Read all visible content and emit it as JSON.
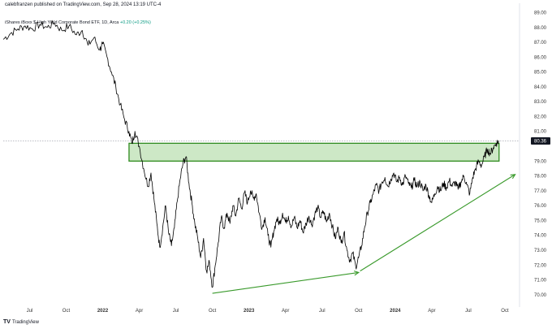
{
  "header": {
    "published": "calebfranzen published on TradingView.com, Sep 28, 2024 13:19 UTC-4",
    "symbol": "iShares iBoxx $ High Yield Corporate Bond ETF, 1D, Arca",
    "change": "+0.20 (+0.25%)"
  },
  "footer": {
    "logo_mark": "TV",
    "logo_text": "TradingView"
  },
  "colors": {
    "line": "#000000",
    "zone_fill": "#cde8c6",
    "zone_border": "#2e8b1f",
    "arrow": "#3a9a2c",
    "price_label_bg": "#131722",
    "axis_text": "#333333"
  },
  "chart_data": {
    "type": "line",
    "title": "iShares iBoxx $ High Yield Corporate Bond ETF, 1D, Arca",
    "xlabel": "",
    "ylabel": "",
    "ylim": [
      69.5,
      89.3
    ],
    "y_ticks": [
      "89.00",
      "88.00",
      "87.00",
      "86.00",
      "85.00",
      "84.00",
      "83.00",
      "82.00",
      "81.00",
      "79.00",
      "78.00",
      "77.00",
      "76.00",
      "75.00",
      "74.00",
      "73.00",
      "72.00",
      "71.00",
      "70.00"
    ],
    "x_ticks": [
      {
        "label": "Jul",
        "t": 2021.5
      },
      {
        "label": "Oct",
        "t": 2021.75
      },
      {
        "label": "2022",
        "t": 2022.0
      },
      {
        "label": "Apr",
        "t": 2022.25
      },
      {
        "label": "Jul",
        "t": 2022.5
      },
      {
        "label": "Oct",
        "t": 2022.75
      },
      {
        "label": "2023",
        "t": 2023.0
      },
      {
        "label": "Apr",
        "t": 2023.25
      },
      {
        "label": "Jul",
        "t": 2023.5
      },
      {
        "label": "Oct",
        "t": 2023.75
      },
      {
        "label": "2024",
        "t": 2024.0
      },
      {
        "label": "Apr",
        "t": 2024.25
      },
      {
        "label": "Jul",
        "t": 2024.5
      },
      {
        "label": "Oct",
        "t": 2024.75
      }
    ],
    "xlim": [
      2021.32,
      2024.85
    ],
    "last_price": "80.36",
    "last_value": 80.36,
    "series": [
      {
        "values": [
          [
            2021.32,
            87.2
          ],
          [
            2021.37,
            87.6
          ],
          [
            2021.42,
            87.9
          ],
          [
            2021.47,
            88.1
          ],
          [
            2021.52,
            87.9
          ],
          [
            2021.57,
            88.2
          ],
          [
            2021.62,
            88.0
          ],
          [
            2021.67,
            88.3
          ],
          [
            2021.72,
            87.8
          ],
          [
            2021.77,
            88.1
          ],
          [
            2021.82,
            87.5
          ],
          [
            2021.86,
            87.8
          ],
          [
            2021.9,
            86.8
          ],
          [
            2021.94,
            87.3
          ],
          [
            2021.98,
            86.5
          ],
          [
            2022.0,
            86.9
          ],
          [
            2022.03,
            86.0
          ],
          [
            2022.06,
            85.0
          ],
          [
            2022.09,
            84.0
          ],
          [
            2022.12,
            82.8
          ],
          [
            2022.15,
            81.8
          ],
          [
            2022.18,
            81.0
          ],
          [
            2022.2,
            80.2
          ],
          [
            2022.22,
            81.0
          ],
          [
            2022.25,
            80.0
          ],
          [
            2022.28,
            78.5
          ],
          [
            2022.31,
            77.3
          ],
          [
            2022.33,
            78.2
          ],
          [
            2022.35,
            76.5
          ],
          [
            2022.37,
            74.8
          ],
          [
            2022.39,
            73.2
          ],
          [
            2022.41,
            74.5
          ],
          [
            2022.43,
            76.0
          ],
          [
            2022.45,
            74.2
          ],
          [
            2022.47,
            73.3
          ],
          [
            2022.49,
            74.5
          ],
          [
            2022.51,
            76.3
          ],
          [
            2022.53,
            77.8
          ],
          [
            2022.55,
            78.9
          ],
          [
            2022.57,
            79.3
          ],
          [
            2022.59,
            77.5
          ],
          [
            2022.61,
            76.2
          ],
          [
            2022.63,
            74.8
          ],
          [
            2022.65,
            73.8
          ],
          [
            2022.67,
            72.5
          ],
          [
            2022.69,
            73.8
          ],
          [
            2022.71,
            71.6
          ],
          [
            2022.73,
            72.2
          ],
          [
            2022.75,
            70.5
          ],
          [
            2022.77,
            72.0
          ],
          [
            2022.79,
            73.5
          ],
          [
            2022.81,
            75.2
          ],
          [
            2022.83,
            74.5
          ],
          [
            2022.85,
            75.5
          ],
          [
            2022.87,
            74.8
          ],
          [
            2022.89,
            76.0
          ],
          [
            2022.91,
            75.3
          ],
          [
            2022.93,
            76.5
          ],
          [
            2022.95,
            75.8
          ],
          [
            2022.97,
            76.9
          ],
          [
            2022.99,
            76.2
          ],
          [
            2023.01,
            77.0
          ],
          [
            2023.03,
            76.5
          ],
          [
            2023.05,
            76.8
          ],
          [
            2023.07,
            75.5
          ],
          [
            2023.09,
            74.5
          ],
          [
            2023.11,
            75.2
          ],
          [
            2023.13,
            74.0
          ],
          [
            2023.15,
            73.2
          ],
          [
            2023.17,
            74.3
          ],
          [
            2023.19,
            75.1
          ],
          [
            2023.21,
            74.8
          ],
          [
            2023.23,
            75.5
          ],
          [
            2023.25,
            74.9
          ],
          [
            2023.27,
            75.3
          ],
          [
            2023.29,
            74.6
          ],
          [
            2023.31,
            75.2
          ],
          [
            2023.33,
            74.5
          ],
          [
            2023.35,
            75.0
          ],
          [
            2023.37,
            74.2
          ],
          [
            2023.39,
            74.8
          ],
          [
            2023.41,
            75.3
          ],
          [
            2023.43,
            74.7
          ],
          [
            2023.45,
            75.4
          ],
          [
            2023.47,
            75.9
          ],
          [
            2023.49,
            75.2
          ],
          [
            2023.51,
            75.6
          ],
          [
            2023.53,
            74.9
          ],
          [
            2023.55,
            75.5
          ],
          [
            2023.57,
            74.6
          ],
          [
            2023.59,
            73.8
          ],
          [
            2023.61,
            74.5
          ],
          [
            2023.63,
            73.5
          ],
          [
            2023.65,
            74.2
          ],
          [
            2023.67,
            73.0
          ],
          [
            2023.69,
            72.3
          ],
          [
            2023.71,
            72.8
          ],
          [
            2023.73,
            71.9
          ],
          [
            2023.75,
            72.5
          ],
          [
            2023.77,
            73.3
          ],
          [
            2023.79,
            74.5
          ],
          [
            2023.81,
            75.5
          ],
          [
            2023.83,
            76.2
          ],
          [
            2023.85,
            76.8
          ],
          [
            2023.87,
            77.4
          ],
          [
            2023.89,
            77.0
          ],
          [
            2023.91,
            77.6
          ],
          [
            2023.93,
            77.9
          ],
          [
            2023.95,
            77.3
          ],
          [
            2023.97,
            77.8
          ],
          [
            2023.99,
            78.2
          ],
          [
            2024.01,
            77.6
          ],
          [
            2024.03,
            77.9
          ],
          [
            2024.05,
            77.4
          ],
          [
            2024.07,
            78.0
          ],
          [
            2024.09,
            77.5
          ],
          [
            2024.11,
            77.2
          ],
          [
            2024.13,
            77.7
          ],
          [
            2024.15,
            77.3
          ],
          [
            2024.17,
            77.6
          ],
          [
            2024.19,
            77.0
          ],
          [
            2024.21,
            77.4
          ],
          [
            2024.23,
            76.7
          ],
          [
            2024.25,
            76.2
          ],
          [
            2024.27,
            76.8
          ],
          [
            2024.29,
            77.3
          ],
          [
            2024.31,
            77.0
          ],
          [
            2024.33,
            77.5
          ],
          [
            2024.35,
            77.2
          ],
          [
            2024.37,
            77.7
          ],
          [
            2024.39,
            77.3
          ],
          [
            2024.41,
            77.6
          ],
          [
            2024.43,
            77.1
          ],
          [
            2024.45,
            77.6
          ],
          [
            2024.47,
            78.0
          ],
          [
            2024.49,
            77.4
          ],
          [
            2024.51,
            76.8
          ],
          [
            2024.53,
            77.9
          ],
          [
            2024.55,
            78.5
          ],
          [
            2024.57,
            79.0
          ],
          [
            2024.59,
            78.7
          ],
          [
            2024.61,
            79.3
          ],
          [
            2024.63,
            79.8
          ],
          [
            2024.65,
            79.5
          ],
          [
            2024.67,
            79.9
          ],
          [
            2024.69,
            80.2
          ],
          [
            2024.71,
            80.36
          ]
        ]
      }
    ],
    "annotations": [
      {
        "kind": "rectangle",
        "x0": 2022.18,
        "x1": 2024.71,
        "y0": 79.0,
        "y1": 80.2
      },
      {
        "kind": "arrow",
        "from": [
          2022.75,
          70.1
        ],
        "to": [
          2023.75,
          71.5
        ]
      },
      {
        "kind": "arrow",
        "from": [
          2023.76,
          71.6
        ],
        "to": [
          2024.82,
          78.1
        ]
      }
    ]
  }
}
